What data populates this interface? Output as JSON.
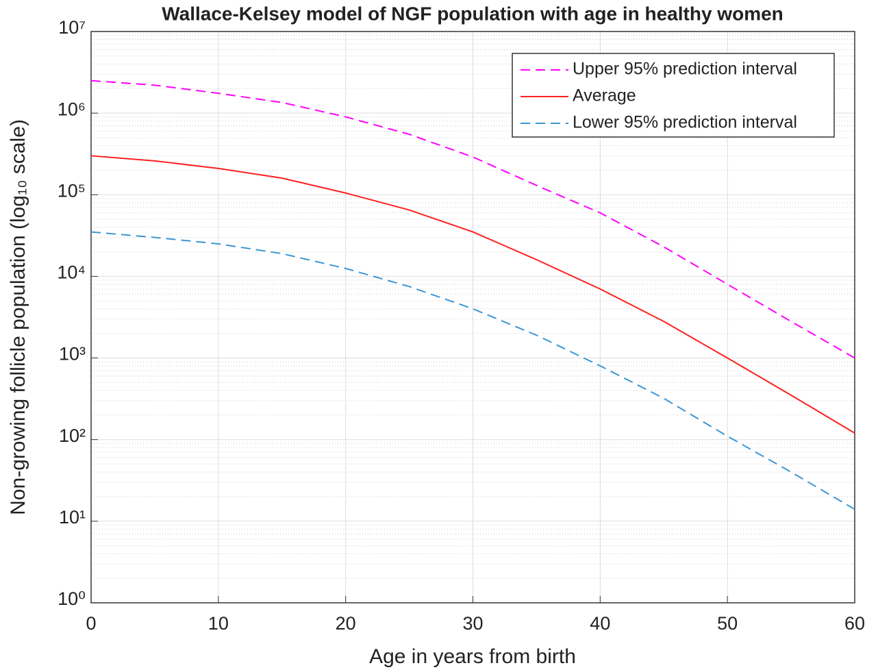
{
  "chart_data": {
    "type": "line",
    "title": "Wallace-Kelsey model of NGF population with age in healthy women",
    "xlabel": "Age in years from birth",
    "ylabel": "Non-growing follicle population (log₁₀ scale)",
    "x": [
      0,
      5,
      10,
      15,
      20,
      25,
      30,
      35,
      40,
      45,
      50,
      55,
      60
    ],
    "series": [
      {
        "name": "Upper 95% prediction interval",
        "color": "#ff00ff",
        "dashed": true,
        "values": [
          2500000,
          2200000,
          1750000,
          1350000,
          900000,
          550000,
          290000,
          130000,
          60000,
          23000,
          8000,
          2800,
          1000
        ]
      },
      {
        "name": "Average",
        "color": "#ff2020",
        "dashed": false,
        "values": [
          300000,
          260000,
          210000,
          160000,
          105000,
          65000,
          35000,
          16000,
          7000,
          2800,
          1000,
          350,
          120
        ]
      },
      {
        "name": "Lower 95% prediction interval",
        "color": "#3a96d4",
        "dashed": true,
        "values": [
          35000,
          30000,
          25000,
          19000,
          12500,
          7500,
          4000,
          1900,
          800,
          320,
          110,
          40,
          14
        ]
      }
    ],
    "xlim": [
      0,
      60
    ],
    "xticks": [
      0,
      10,
      20,
      30,
      40,
      50,
      60
    ],
    "ylim": [
      1,
      10000000
    ],
    "ylog": true,
    "yticks": [
      {
        "value": 1,
        "label": "10⁰"
      },
      {
        "value": 10,
        "label": "10¹"
      },
      {
        "value": 100,
        "label": "10²"
      },
      {
        "value": 1000,
        "label": "10³"
      },
      {
        "value": 10000,
        "label": "10⁴"
      },
      {
        "value": 100000,
        "label": "10⁵"
      },
      {
        "value": 1000000,
        "label": "10⁶"
      },
      {
        "value": 10000000,
        "label": "10⁷"
      }
    ],
    "grid": true,
    "minor_grid": true,
    "legend": "upper right"
  }
}
